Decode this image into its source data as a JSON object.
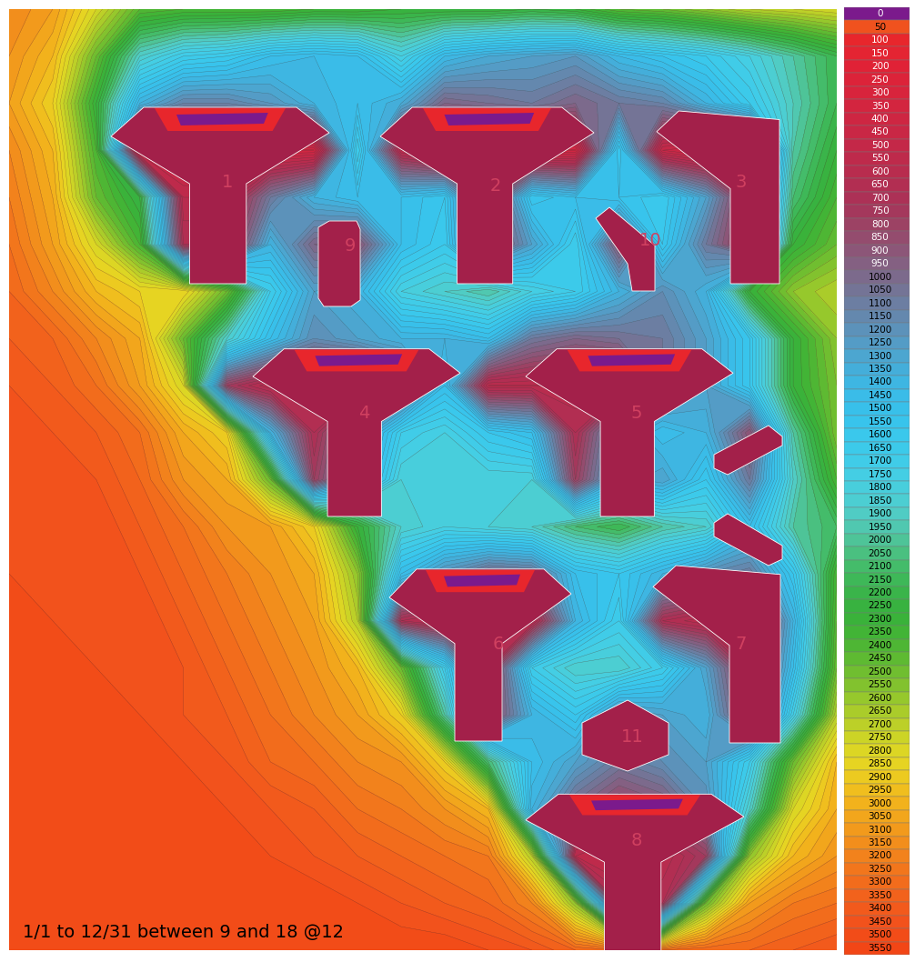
{
  "chart_data": {
    "type": "contour_map",
    "caption": "1/1 to 12/31 between 9 and 18 @12",
    "buildings": [
      "1",
      "2",
      "3",
      "4",
      "5",
      "6",
      "7",
      "8",
      "9",
      "10",
      "11"
    ],
    "cells": [
      [
        3200,
        3100,
        2800,
        2450,
        2400,
        2400,
        2400,
        2350,
        2350,
        2300,
        2300,
        2300,
        2250,
        2300,
        2450,
        2500,
        2600,
        2700,
        2750,
        2800
      ],
      [
        3150,
        3000,
        2500,
        1900,
        1700,
        1650,
        1500,
        1450,
        1500,
        1800,
        1450,
        1350,
        1300,
        1250,
        1450,
        1550,
        1650,
        1800,
        2000,
        2200
      ],
      [
        3100,
        2900,
        2300,
        1400,
        1150,
        1150,
        1250,
        1400,
        1500,
        1350,
        1000,
        1050,
        1100,
        1000,
        1100,
        1150,
        1400,
        1650,
        1950,
        2200
      ],
      [
        3200,
        3000,
        2400,
        400,
        400,
        400,
        400,
        400,
        1700,
        600,
        400,
        400,
        400,
        400,
        1600,
        500,
        400,
        400,
        2000,
        2300
      ],
      [
        3250,
        3050,
        2500,
        2250,
        600,
        600,
        1100,
        1400,
        1500,
        1500,
        1600,
        800,
        1600,
        1500,
        1550,
        1650,
        1300,
        700,
        2100,
        2400
      ],
      [
        3300,
        3100,
        2800,
        2400,
        700,
        700,
        1400,
        1000,
        900,
        1500,
        1650,
        800,
        1300,
        1700,
        900,
        1600,
        1100,
        700,
        2300,
        2500
      ],
      [
        3350,
        3200,
        3000,
        2900,
        2900,
        2500,
        1700,
        1300,
        1400,
        1800,
        1900,
        2000,
        1800,
        1700,
        1400,
        1200,
        1400,
        2300,
        2600,
        2700
      ],
      [
        3400,
        3350,
        3200,
        3050,
        2500,
        1900,
        1500,
        1200,
        1300,
        1400,
        1400,
        1500,
        1100,
        1000,
        1050,
        1100,
        1300,
        1600,
        2300,
        2600
      ],
      [
        3450,
        3400,
        3300,
        3100,
        2800,
        800,
        600,
        600,
        600,
        900,
        1500,
        600,
        600,
        600,
        600,
        1100,
        1300,
        1600,
        2300,
        2550
      ],
      [
        3500,
        3450,
        3400,
        3300,
        3050,
        2900,
        1400,
        700,
        1200,
        1700,
        1800,
        1600,
        1500,
        700,
        1300,
        1500,
        1400,
        900,
        2000,
        2550
      ],
      [
        3500,
        3500,
        3450,
        3350,
        3150,
        3050,
        2500,
        800,
        1300,
        1850,
        1850,
        1850,
        1850,
        800,
        1400,
        1300,
        1600,
        1100,
        1900,
        2400
      ],
      [
        3500,
        3500,
        3500,
        3400,
        3300,
        3150,
        3100,
        2900,
        2300,
        1900,
        1800,
        1850,
        1900,
        2100,
        2200,
        2000,
        1900,
        1500,
        2000,
        2150
      ],
      [
        3500,
        3500,
        3500,
        3450,
        3350,
        3250,
        3150,
        3050,
        2600,
        1500,
        1200,
        1000,
        1050,
        1500,
        1600,
        1400,
        1200,
        1100,
        1600,
        2400
      ],
      [
        3550,
        3500,
        3500,
        3500,
        3400,
        3300,
        3200,
        3100,
        2700,
        700,
        600,
        600,
        600,
        1400,
        1700,
        700,
        600,
        600,
        1400,
        2450
      ],
      [
        3550,
        3550,
        3500,
        3500,
        3450,
        3350,
        3250,
        3150,
        3000,
        2500,
        1700,
        700,
        1700,
        1900,
        1900,
        1700,
        1300,
        700,
        1500,
        2500
      ],
      [
        3550,
        3550,
        3550,
        3500,
        3450,
        3400,
        3300,
        3200,
        3100,
        2900,
        2000,
        800,
        1400,
        1600,
        1200,
        1300,
        1400,
        800,
        1750,
        2700
      ],
      [
        3550,
        3550,
        3550,
        3550,
        3500,
        3450,
        3350,
        3300,
        3200,
        3150,
        2900,
        2100,
        1500,
        1300,
        1100,
        1200,
        1300,
        1700,
        2500,
        3000
      ],
      [
        3550,
        3550,
        3550,
        3550,
        3550,
        3500,
        3450,
        3400,
        3300,
        3250,
        3150,
        3000,
        1400,
        1000,
        800,
        900,
        1200,
        1900,
        2800,
        3050
      ],
      [
        3550,
        3550,
        3550,
        3550,
        3550,
        3550,
        3500,
        3450,
        3400,
        3350,
        3300,
        3250,
        2700,
        600,
        500,
        600,
        800,
        2600,
        3000,
        3150
      ],
      [
        3550,
        3550,
        3550,
        3550,
        3550,
        3550,
        3550,
        3550,
        3500,
        3450,
        3400,
        3350,
        3200,
        2600,
        700,
        700,
        2500,
        3100,
        3250,
        3300
      ],
      [
        3550,
        3550,
        3550,
        3550,
        3550,
        3550,
        3550,
        3550,
        3550,
        3550,
        3550,
        3500,
        3450,
        3350,
        3300,
        3300,
        3350,
        3350,
        3400,
        3450
      ]
    ],
    "colorbar": {
      "ticks": [
        0,
        50,
        100,
        150,
        200,
        250,
        300,
        350,
        400,
        450,
        500,
        550,
        600,
        650,
        700,
        750,
        800,
        850,
        900,
        950,
        1000,
        1050,
        1100,
        1150,
        1200,
        1250,
        1300,
        1350,
        1400,
        1450,
        1500,
        1550,
        1600,
        1650,
        1700,
        1750,
        1800,
        1850,
        1900,
        1950,
        2000,
        2050,
        2100,
        2150,
        2200,
        2250,
        2300,
        2350,
        2400,
        2450,
        2500,
        2550,
        2600,
        2650,
        2700,
        2750,
        2800,
        2850,
        2900,
        2950,
        3000,
        3050,
        3100,
        3150,
        3200,
        3250,
        3300,
        3350,
        3400,
        3450,
        3500,
        3550
      ],
      "colors": [
        "#7B1A8C",
        "#F0521E",
        "#E8262C",
        "#E42432",
        "#E02236",
        "#DC2339",
        "#D8243C",
        "#D3253F",
        "#CE2642",
        "#C92745",
        "#C42848",
        "#BE2A4B",
        "#B82C4E",
        "#B22E52",
        "#AC3156",
        "#A4385C",
        "#9C4264",
        "#944C6E",
        "#8C5678",
        "#846082",
        "#7C6A8C",
        "#747496",
        "#6C7EA2",
        "#6488AE",
        "#5C92BA",
        "#549CC6",
        "#4CA6D0",
        "#44AEDA",
        "#3EB6E2",
        "#3ABCE8",
        "#38C0EA",
        "#38C4EC",
        "#3AC8EC",
        "#3CCAEA",
        "#40CCE8",
        "#44CEE4",
        "#48CEDC",
        "#4CCED2",
        "#50CCC4",
        "#50C8B0",
        "#4EC498",
        "#4AC080",
        "#44BC6A",
        "#3EB858",
        "#3AB44A",
        "#38B240",
        "#3AB23A",
        "#42B436",
        "#4EB634",
        "#5EBA32",
        "#70BE30",
        "#82C22E",
        "#96C82C",
        "#AACC2A",
        "#BCD028",
        "#CCD426",
        "#DCD624",
        "#E6D422",
        "#ECCA20",
        "#F0BE1E",
        "#F2B21C",
        "#F2A61C",
        "#F29A1C",
        "#F28E1C",
        "#F2821C",
        "#F2761C",
        "#F26C1C",
        "#F2621C",
        "#F25A1C",
        "#F2521C",
        "#F24C18",
        "#F24616"
      ]
    }
  }
}
